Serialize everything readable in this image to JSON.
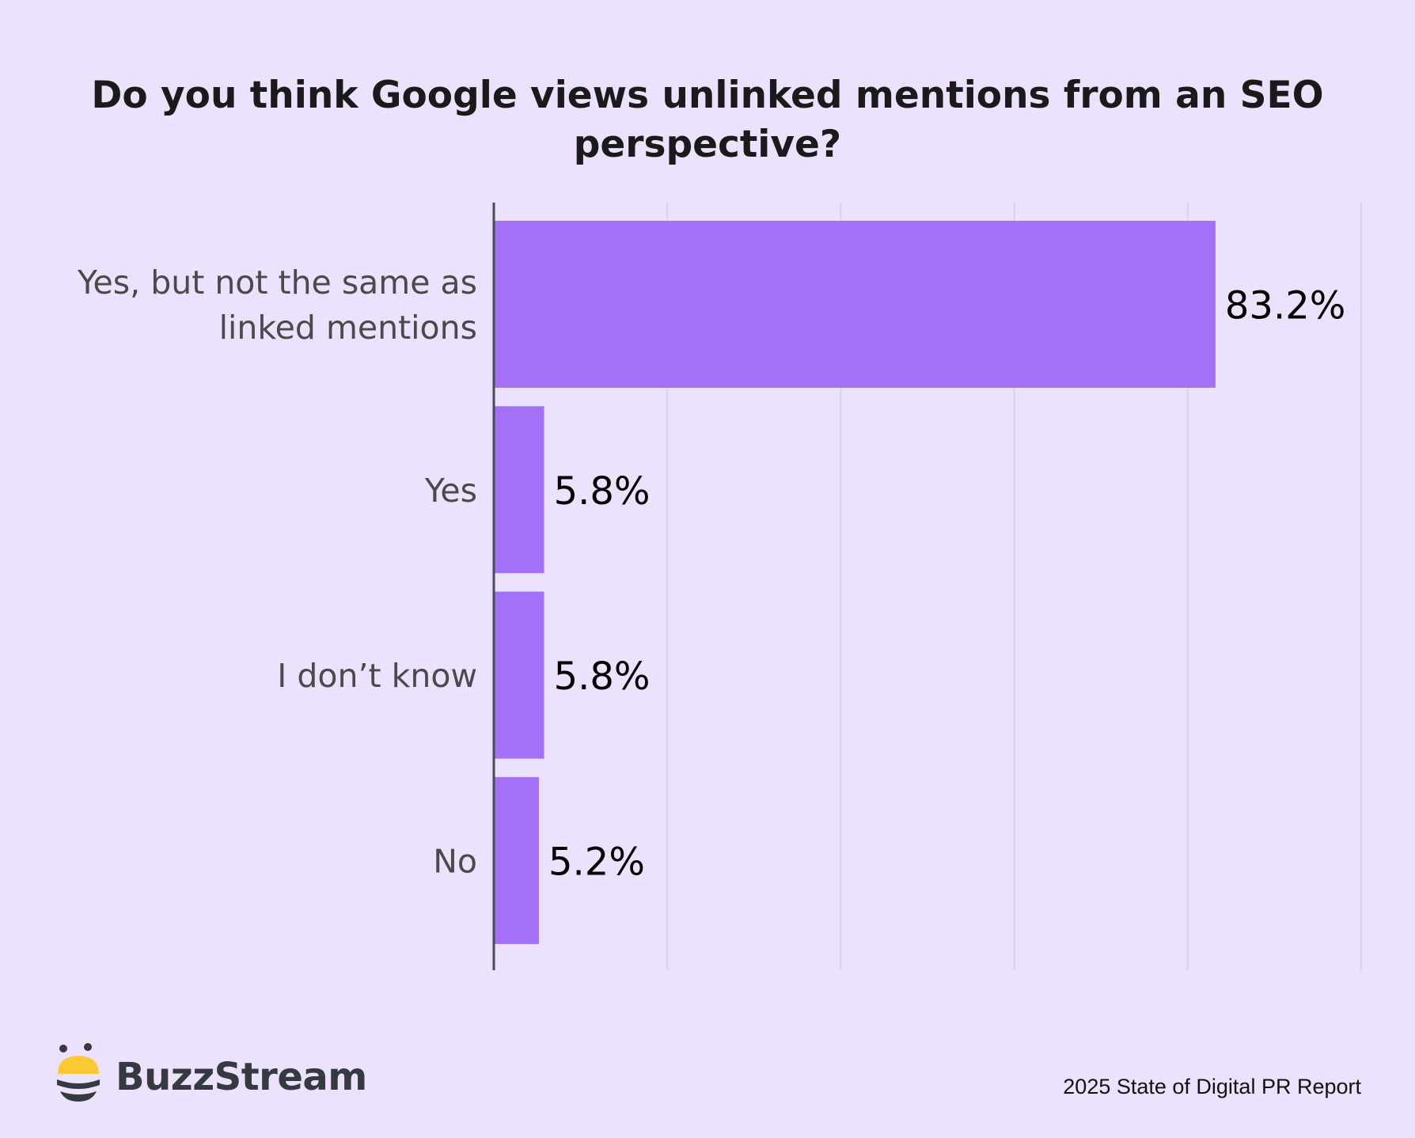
{
  "colors": {
    "background": "#ece2fe",
    "bar": "#a371f7",
    "gridline": "#d9d0ec",
    "axis": "#4a4a52",
    "category_text": "#4a4a4a",
    "value_text": "#000000",
    "title_text": "#1a1a1a",
    "logo_yellow": "#fcc934",
    "logo_dark": "#353a40"
  },
  "brand": {
    "name": "BuzzStream",
    "icon": "bee-logo-icon"
  },
  "footer": {
    "report": "2025 State of Digital PR Report"
  },
  "chart_data": {
    "type": "bar",
    "orientation": "horizontal",
    "title": "Do you think Google views unlinked mentions from an SEO perspective?",
    "title_lines": [
      "Do you think Google views unlinked mentions from an SEO",
      "perspective?"
    ],
    "categories": [
      "Yes, but not the same as linked mentions",
      "Yes",
      "I don’t know",
      "No"
    ],
    "category_lines": [
      [
        "Yes, but not the same as",
        "linked mentions"
      ],
      [
        "Yes"
      ],
      [
        "I don’t know"
      ],
      [
        "No"
      ]
    ],
    "values": [
      83.2,
      5.8,
      5.8,
      5.2
    ],
    "value_labels": [
      "83.2%",
      "5.8%",
      "5.8%",
      "5.2%"
    ],
    "unit": "%",
    "xlabel": "",
    "ylabel": "",
    "xlim": [
      0,
      100
    ],
    "gridlines_x": [
      20,
      40,
      60,
      80,
      100
    ],
    "grid": true,
    "x_tick_labels_shown": false,
    "legend": "none"
  }
}
